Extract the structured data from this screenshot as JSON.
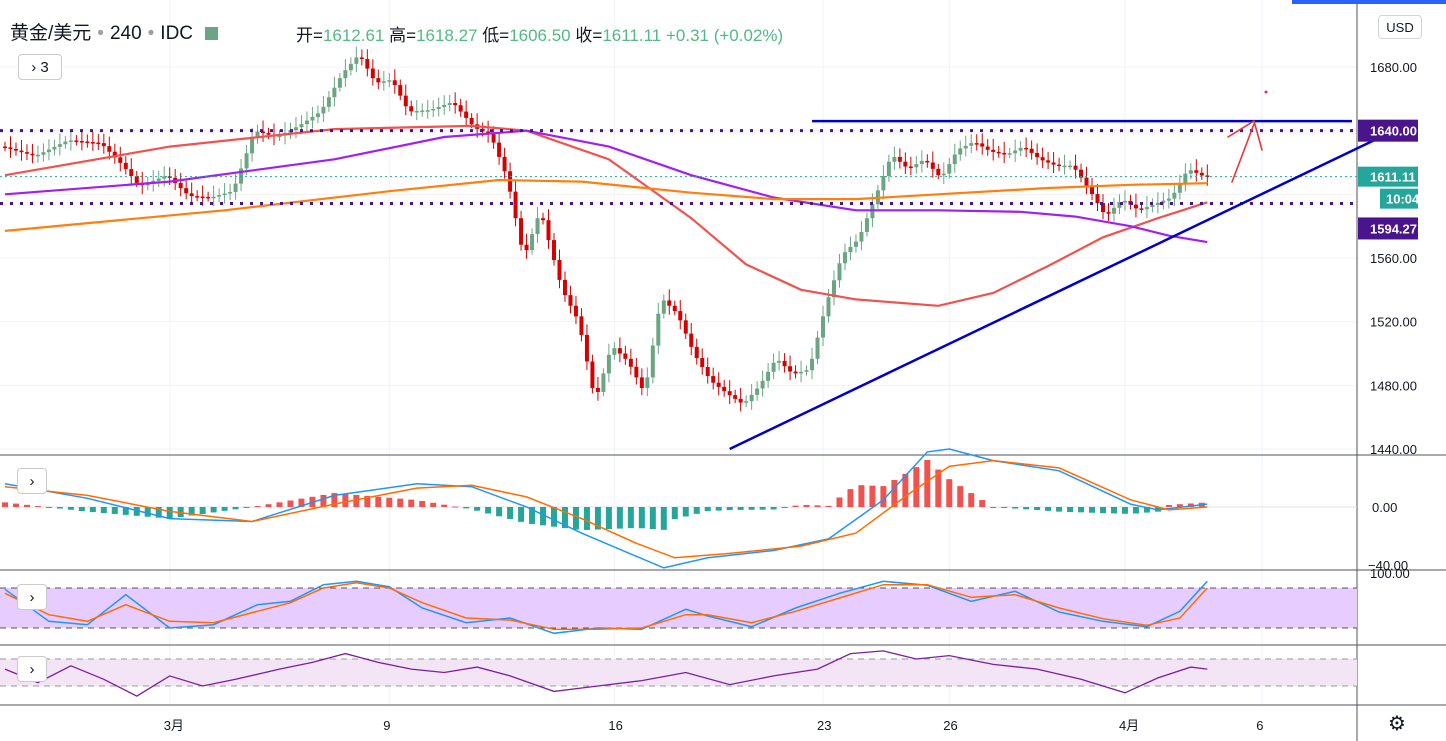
{
  "header": {
    "symbol": "黄金/美元",
    "interval": "240",
    "source": "IDC",
    "open_label": "开=",
    "open": "1612.61",
    "high_label": "高=",
    "high": "1618.27",
    "low_label": "低=",
    "low": "1606.50",
    "close_label": "收=",
    "close": "1611.11",
    "change": "+0.31 (+0.02%)"
  },
  "toolbar": {
    "collapse_label": "3",
    "currency": "USD"
  },
  "chart_data": [
    {
      "type": "candlestick",
      "title": "",
      "y_ticks": [
        1680,
        1640,
        1600,
        1560,
        1520,
        1480,
        1440
      ],
      "y_tick_labels": [
        "1680.00",
        "1640.00",
        "1611.11",
        "1594.27",
        "1560.00",
        "1520.00",
        "1480.00",
        "1440.00"
      ],
      "ylim": [
        1437,
        1710
      ],
      "x_tick_labels": [
        "3月",
        "9",
        "16",
        "23",
        "26",
        "4月",
        "6"
      ],
      "price_labels": {
        "last": "1611.11",
        "countdown": "10:04",
        "level_high": "1640.00",
        "level_low": "1594.27"
      },
      "horizontal_levels": [
        1640,
        1611.11,
        1594.27
      ],
      "resistance_line": 1646,
      "anchor_path": [
        {
          "bar": 0,
          "price": 1630
        },
        {
          "bar": 6,
          "price": 1624
        },
        {
          "bar": 12,
          "price": 1634
        },
        {
          "bar": 18,
          "price": 1632
        },
        {
          "bar": 22,
          "price": 1618
        },
        {
          "bar": 25,
          "price": 1605
        },
        {
          "bar": 30,
          "price": 1612
        },
        {
          "bar": 34,
          "price": 1599
        },
        {
          "bar": 38,
          "price": 1598
        },
        {
          "bar": 42,
          "price": 1602
        },
        {
          "bar": 46,
          "price": 1640
        },
        {
          "bar": 50,
          "price": 1636
        },
        {
          "bar": 54,
          "price": 1643
        },
        {
          "bar": 58,
          "price": 1652
        },
        {
          "bar": 62,
          "price": 1676
        },
        {
          "bar": 65,
          "price": 1688
        },
        {
          "bar": 68,
          "price": 1670
        },
        {
          "bar": 71,
          "price": 1672
        },
        {
          "bar": 74,
          "price": 1652
        },
        {
          "bar": 78,
          "price": 1653
        },
        {
          "bar": 82,
          "price": 1658
        },
        {
          "bar": 86,
          "price": 1642
        },
        {
          "bar": 89,
          "price": 1637
        },
        {
          "bar": 92,
          "price": 1610
        },
        {
          "bar": 95,
          "price": 1560
        },
        {
          "bar": 98,
          "price": 1590
        },
        {
          "bar": 102,
          "price": 1540
        },
        {
          "bar": 105,
          "price": 1520
        },
        {
          "bar": 108,
          "price": 1470
        },
        {
          "bar": 111,
          "price": 1505
        },
        {
          "bar": 114,
          "price": 1495
        },
        {
          "bar": 117,
          "price": 1475
        },
        {
          "bar": 120,
          "price": 1535
        },
        {
          "bar": 123,
          "price": 1525
        },
        {
          "bar": 126,
          "price": 1500
        },
        {
          "bar": 129,
          "price": 1483
        },
        {
          "bar": 132,
          "price": 1475
        },
        {
          "bar": 135,
          "price": 1468
        },
        {
          "bar": 138,
          "price": 1480
        },
        {
          "bar": 141,
          "price": 1497
        },
        {
          "bar": 144,
          "price": 1487
        },
        {
          "bar": 147,
          "price": 1490
        },
        {
          "bar": 150,
          "price": 1530
        },
        {
          "bar": 153,
          "price": 1562
        },
        {
          "bar": 156,
          "price": 1572
        },
        {
          "bar": 159,
          "price": 1598
        },
        {
          "bar": 162,
          "price": 1625
        },
        {
          "bar": 165,
          "price": 1616
        },
        {
          "bar": 168,
          "price": 1622
        },
        {
          "bar": 171,
          "price": 1610
        },
        {
          "bar": 174,
          "price": 1628
        },
        {
          "bar": 177,
          "price": 1633
        },
        {
          "bar": 180,
          "price": 1627
        },
        {
          "bar": 183,
          "price": 1625
        },
        {
          "bar": 186,
          "price": 1630
        },
        {
          "bar": 189,
          "price": 1622
        },
        {
          "bar": 192,
          "price": 1618
        },
        {
          "bar": 195,
          "price": 1618
        },
        {
          "bar": 198,
          "price": 1603
        },
        {
          "bar": 201,
          "price": 1586
        },
        {
          "bar": 204,
          "price": 1597
        },
        {
          "bar": 207,
          "price": 1590
        },
        {
          "bar": 210,
          "price": 1594
        },
        {
          "bar": 213,
          "price": 1598
        },
        {
          "bar": 216,
          "price": 1616
        },
        {
          "bar": 219,
          "price": 1611
        }
      ],
      "moving_averages": [
        {
          "color": "#ef5350",
          "points": [
            [
              0,
              1612
            ],
            [
              30,
              1630
            ],
            [
              60,
              1641
            ],
            [
              85,
              1643
            ],
            [
              95,
              1640
            ],
            [
              110,
              1622
            ],
            [
              125,
              1585
            ],
            [
              135,
              1556
            ],
            [
              145,
              1540
            ],
            [
              155,
              1534
            ],
            [
              170,
              1530
            ],
            [
              180,
              1538
            ],
            [
              190,
              1555
            ],
            [
              200,
              1573
            ],
            [
              210,
              1585
            ],
            [
              219,
              1595
            ]
          ]
        },
        {
          "color": "#a020f0",
          "points": [
            [
              0,
              1600
            ],
            [
              30,
              1608
            ],
            [
              60,
              1622
            ],
            [
              80,
              1636
            ],
            [
              95,
              1640
            ],
            [
              110,
              1630
            ],
            [
              125,
              1612
            ],
            [
              140,
              1598
            ],
            [
              155,
              1590
            ],
            [
              170,
              1590
            ],
            [
              185,
              1589
            ],
            [
              195,
              1586
            ],
            [
              205,
              1580
            ],
            [
              212,
              1574
            ],
            [
              219,
              1570
            ]
          ]
        },
        {
          "color": "#ff7f0e",
          "points": [
            [
              0,
              1577
            ],
            [
              40,
              1590
            ],
            [
              70,
              1602
            ],
            [
              90,
              1609
            ],
            [
              105,
              1608
            ],
            [
              125,
              1601
            ],
            [
              140,
              1597
            ],
            [
              155,
              1597
            ],
            [
              170,
              1600
            ],
            [
              190,
              1604
            ],
            [
              205,
              1606
            ],
            [
              219,
              1607
            ]
          ]
        }
      ],
      "trendline": {
        "color": "#0000cc",
        "from": {
          "bar": 132,
          "price": 1440
        },
        "to": {
          "bar": 250,
          "price": 1635
        }
      },
      "colors": {
        "up": "#6ba583",
        "down": "#d50000"
      }
    },
    {
      "type": "macd",
      "y_tick_labels": [
        "0.00",
        "−40.00"
      ],
      "ylim": [
        -52,
        48
      ],
      "macd_points": [
        [
          0,
          16
        ],
        [
          15,
          6
        ],
        [
          30,
          -8
        ],
        [
          45,
          -10
        ],
        [
          60,
          8
        ],
        [
          75,
          16
        ],
        [
          85,
          14
        ],
        [
          95,
          0
        ],
        [
          105,
          -18
        ],
        [
          115,
          -34
        ],
        [
          120,
          -42
        ],
        [
          128,
          -35
        ],
        [
          140,
          -30
        ],
        [
          150,
          -22
        ],
        [
          160,
          5
        ],
        [
          168,
          38
        ],
        [
          172,
          40
        ],
        [
          180,
          32
        ],
        [
          192,
          25
        ],
        [
          205,
          2
        ],
        [
          210,
          -2
        ],
        [
          219,
          2
        ]
      ],
      "signal_points": [
        [
          0,
          14
        ],
        [
          15,
          8
        ],
        [
          30,
          -3
        ],
        [
          45,
          -10
        ],
        [
          60,
          2
        ],
        [
          75,
          13
        ],
        [
          85,
          15
        ],
        [
          95,
          7
        ],
        [
          105,
          -8
        ],
        [
          115,
          -25
        ],
        [
          122,
          -35
        ],
        [
          132,
          -32
        ],
        [
          145,
          -27
        ],
        [
          155,
          -18
        ],
        [
          165,
          10
        ],
        [
          172,
          28
        ],
        [
          180,
          32
        ],
        [
          192,
          27
        ],
        [
          205,
          5
        ],
        [
          212,
          -2
        ],
        [
          219,
          0
        ]
      ],
      "colors": {
        "macd": "#2196f3",
        "signal": "#ff6d00",
        "hist_up": "#ef5350",
        "hist_down": "#26a69a"
      }
    },
    {
      "type": "stochastic",
      "y_tick_labels": [
        "100.00"
      ],
      "ylim": [
        0,
        100
      ],
      "bands": [
        80,
        20
      ],
      "k_points": [
        [
          0,
          78
        ],
        [
          8,
          30
        ],
        [
          15,
          25
        ],
        [
          22,
          70
        ],
        [
          30,
          20
        ],
        [
          38,
          25
        ],
        [
          46,
          55
        ],
        [
          52,
          60
        ],
        [
          58,
          85
        ],
        [
          64,
          90
        ],
        [
          70,
          82
        ],
        [
          76,
          50
        ],
        [
          84,
          28
        ],
        [
          92,
          35
        ],
        [
          100,
          12
        ],
        [
          108,
          20
        ],
        [
          116,
          18
        ],
        [
          124,
          48
        ],
        [
          128,
          38
        ],
        [
          136,
          22
        ],
        [
          144,
          50
        ],
        [
          152,
          72
        ],
        [
          160,
          90
        ],
        [
          168,
          84
        ],
        [
          176,
          60
        ],
        [
          184,
          75
        ],
        [
          192,
          44
        ],
        [
          200,
          30
        ],
        [
          208,
          22
        ],
        [
          214,
          45
        ],
        [
          219,
          90
        ]
      ],
      "d_points": [
        [
          0,
          72
        ],
        [
          8,
          40
        ],
        [
          15,
          30
        ],
        [
          22,
          55
        ],
        [
          30,
          30
        ],
        [
          38,
          28
        ],
        [
          46,
          45
        ],
        [
          52,
          58
        ],
        [
          58,
          80
        ],
        [
          64,
          88
        ],
        [
          70,
          80
        ],
        [
          76,
          58
        ],
        [
          84,
          35
        ],
        [
          92,
          32
        ],
        [
          100,
          18
        ],
        [
          108,
          18
        ],
        [
          116,
          20
        ],
        [
          124,
          40
        ],
        [
          128,
          40
        ],
        [
          136,
          28
        ],
        [
          144,
          45
        ],
        [
          152,
          65
        ],
        [
          160,
          85
        ],
        [
          168,
          85
        ],
        [
          176,
          66
        ],
        [
          184,
          70
        ],
        [
          192,
          50
        ],
        [
          200,
          34
        ],
        [
          208,
          24
        ],
        [
          214,
          35
        ],
        [
          219,
          80
        ]
      ],
      "colors": {
        "k": "#2196f3",
        "d": "#ff6d00",
        "band_fill": "#e6ccff"
      }
    },
    {
      "type": "rsi",
      "ylim": [
        0,
        100
      ],
      "bands": [
        70,
        30
      ],
      "points": [
        [
          0,
          55
        ],
        [
          6,
          35
        ],
        [
          12,
          60
        ],
        [
          18,
          40
        ],
        [
          24,
          15
        ],
        [
          30,
          45
        ],
        [
          36,
          30
        ],
        [
          42,
          40
        ],
        [
          50,
          55
        ],
        [
          56,
          65
        ],
        [
          62,
          78
        ],
        [
          68,
          65
        ],
        [
          74,
          55
        ],
        [
          80,
          50
        ],
        [
          86,
          58
        ],
        [
          92,
          45
        ],
        [
          100,
          22
        ],
        [
          108,
          30
        ],
        [
          116,
          38
        ],
        [
          124,
          50
        ],
        [
          132,
          32
        ],
        [
          140,
          45
        ],
        [
          148,
          55
        ],
        [
          154,
          78
        ],
        [
          160,
          82
        ],
        [
          166,
          70
        ],
        [
          172,
          75
        ],
        [
          180,
          62
        ],
        [
          188,
          55
        ],
        [
          196,
          40
        ],
        [
          204,
          20
        ],
        [
          210,
          42
        ],
        [
          216,
          58
        ],
        [
          219,
          55
        ]
      ],
      "colors": {
        "line": "#7b1fa2",
        "band_fill": "#f3e5f5"
      }
    }
  ]
}
